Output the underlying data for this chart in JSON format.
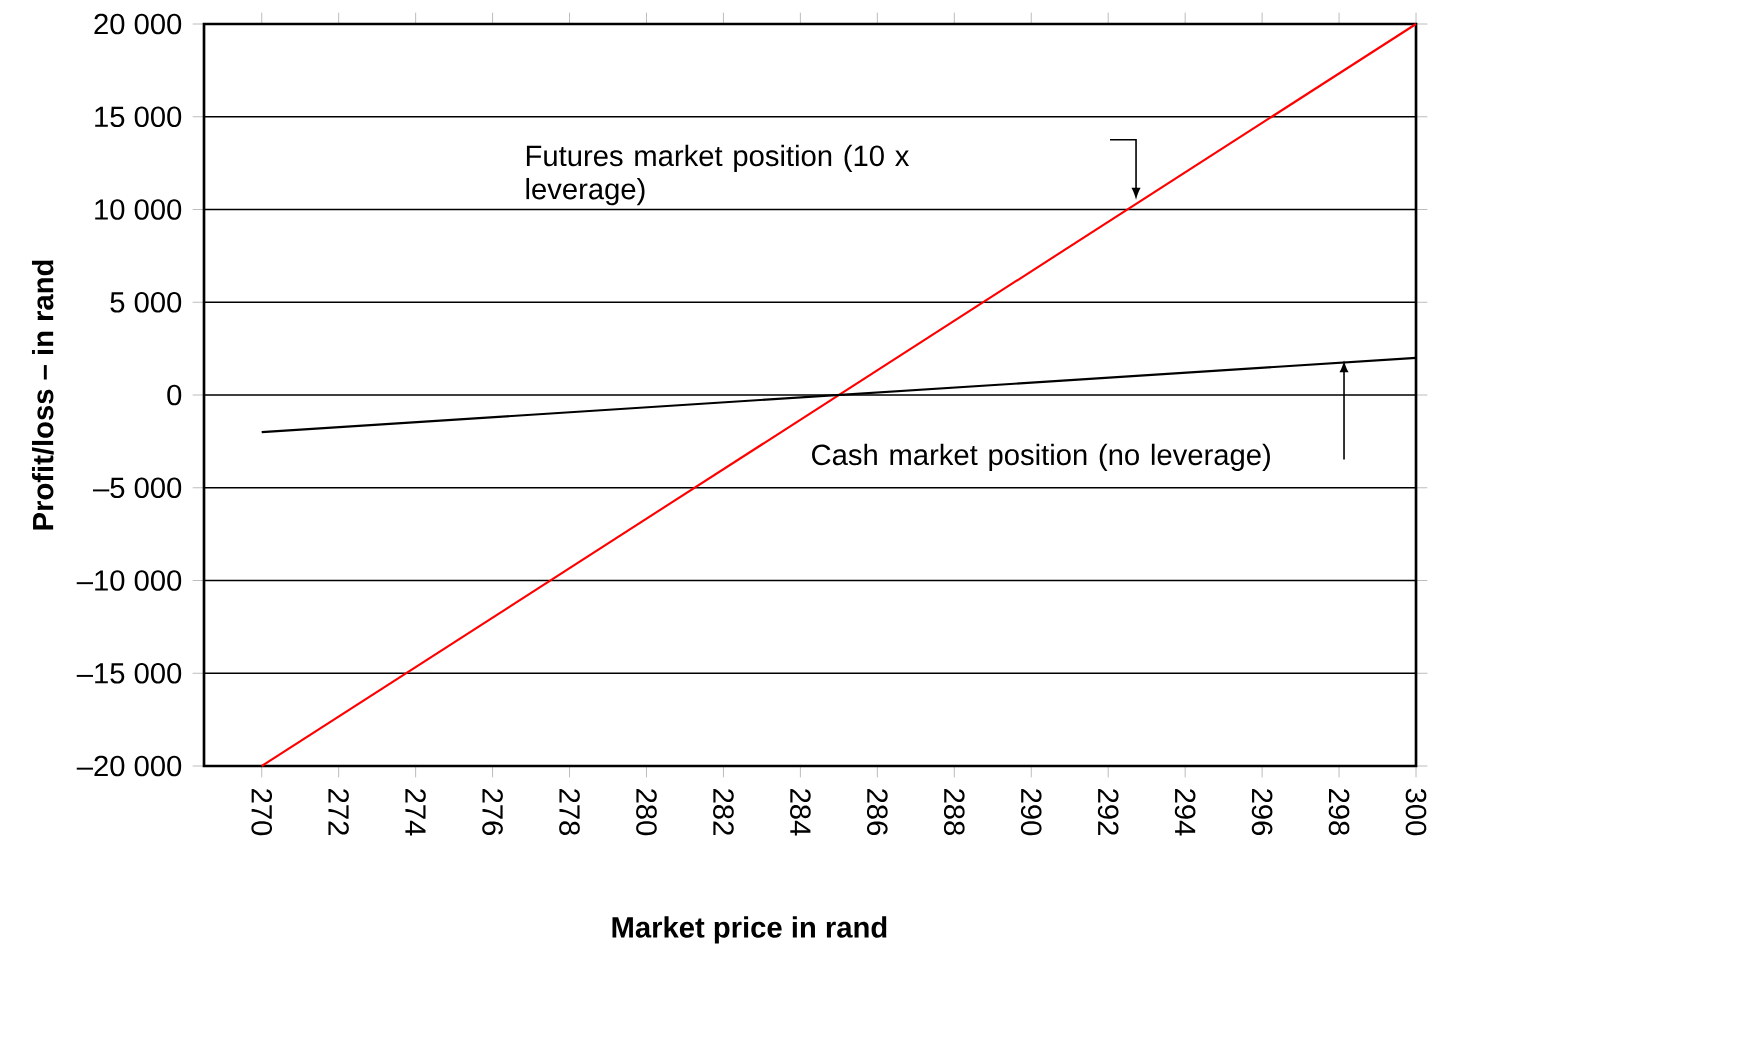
{
  "chart_data": {
    "type": "line",
    "xlabel": "Market price in rand",
    "ylabel": "Profit/loss – in rand",
    "x": [
      270,
      300
    ],
    "series": [
      {
        "color": "#ff0000",
        "values": [
          -20000,
          20000
        ]
      },
      {
        "color": "#000000",
        "values": [
          -2000,
          2000
        ]
      }
    ],
    "xlim": [
      268.5,
      300
    ],
    "xticks": [
      270,
      272,
      274,
      276,
      278,
      280,
      282,
      284,
      286,
      288,
      290,
      292,
      294,
      296,
      298,
      300
    ],
    "ylim": [
      -20000,
      20000
    ],
    "yticks": [
      {
        "value": -20000,
        "label": "–20 000"
      },
      {
        "value": -15000,
        "label": "–15 000"
      },
      {
        "value": -10000,
        "label": "–10 000"
      },
      {
        "value": -5000,
        "label": "–5 000"
      },
      0,
      {
        "value": 5000,
        "label": "5 000"
      },
      {
        "value": 10000,
        "label": "10 000"
      },
      {
        "value": 15000,
        "label": "15 000"
      },
      {
        "value": 20000,
        "label": "20 000"
      }
    ],
    "annotations": [
      "Futures market position (10 x leverage)",
      "Cash market position (no leverage)"
    ],
    "grid": "y",
    "marker": "none",
    "line_style": "solid"
  }
}
